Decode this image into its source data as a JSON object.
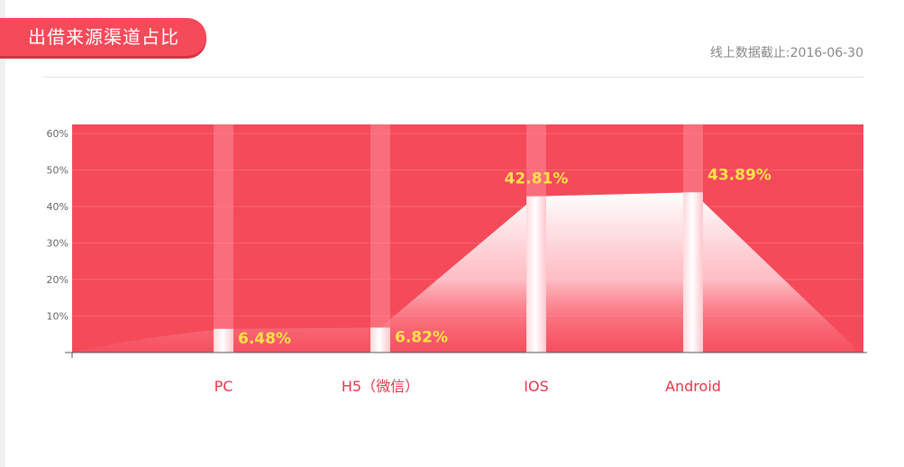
{
  "header": {
    "title": "出借来源渠道占比",
    "cutoff_text": "线上数据截止:2016-06-30"
  },
  "colors": {
    "accent": "#f44a5a",
    "value_label": "#ffe14a",
    "category_label": "#e8354a"
  },
  "chart_data": {
    "type": "bar",
    "categories": [
      "PC",
      "H5（微信）",
      "IOS",
      "Android"
    ],
    "values": [
      6.48,
      6.82,
      42.81,
      43.89
    ],
    "value_labels": [
      "6.48%",
      "6.82%",
      "42.81%",
      "43.89%"
    ],
    "y_ticks": [
      "10%",
      "20%",
      "30%",
      "40%",
      "50%",
      "60%"
    ],
    "ylim": [
      0,
      62.5
    ],
    "grid": true,
    "title": "",
    "xlabel": "",
    "ylabel": ""
  }
}
